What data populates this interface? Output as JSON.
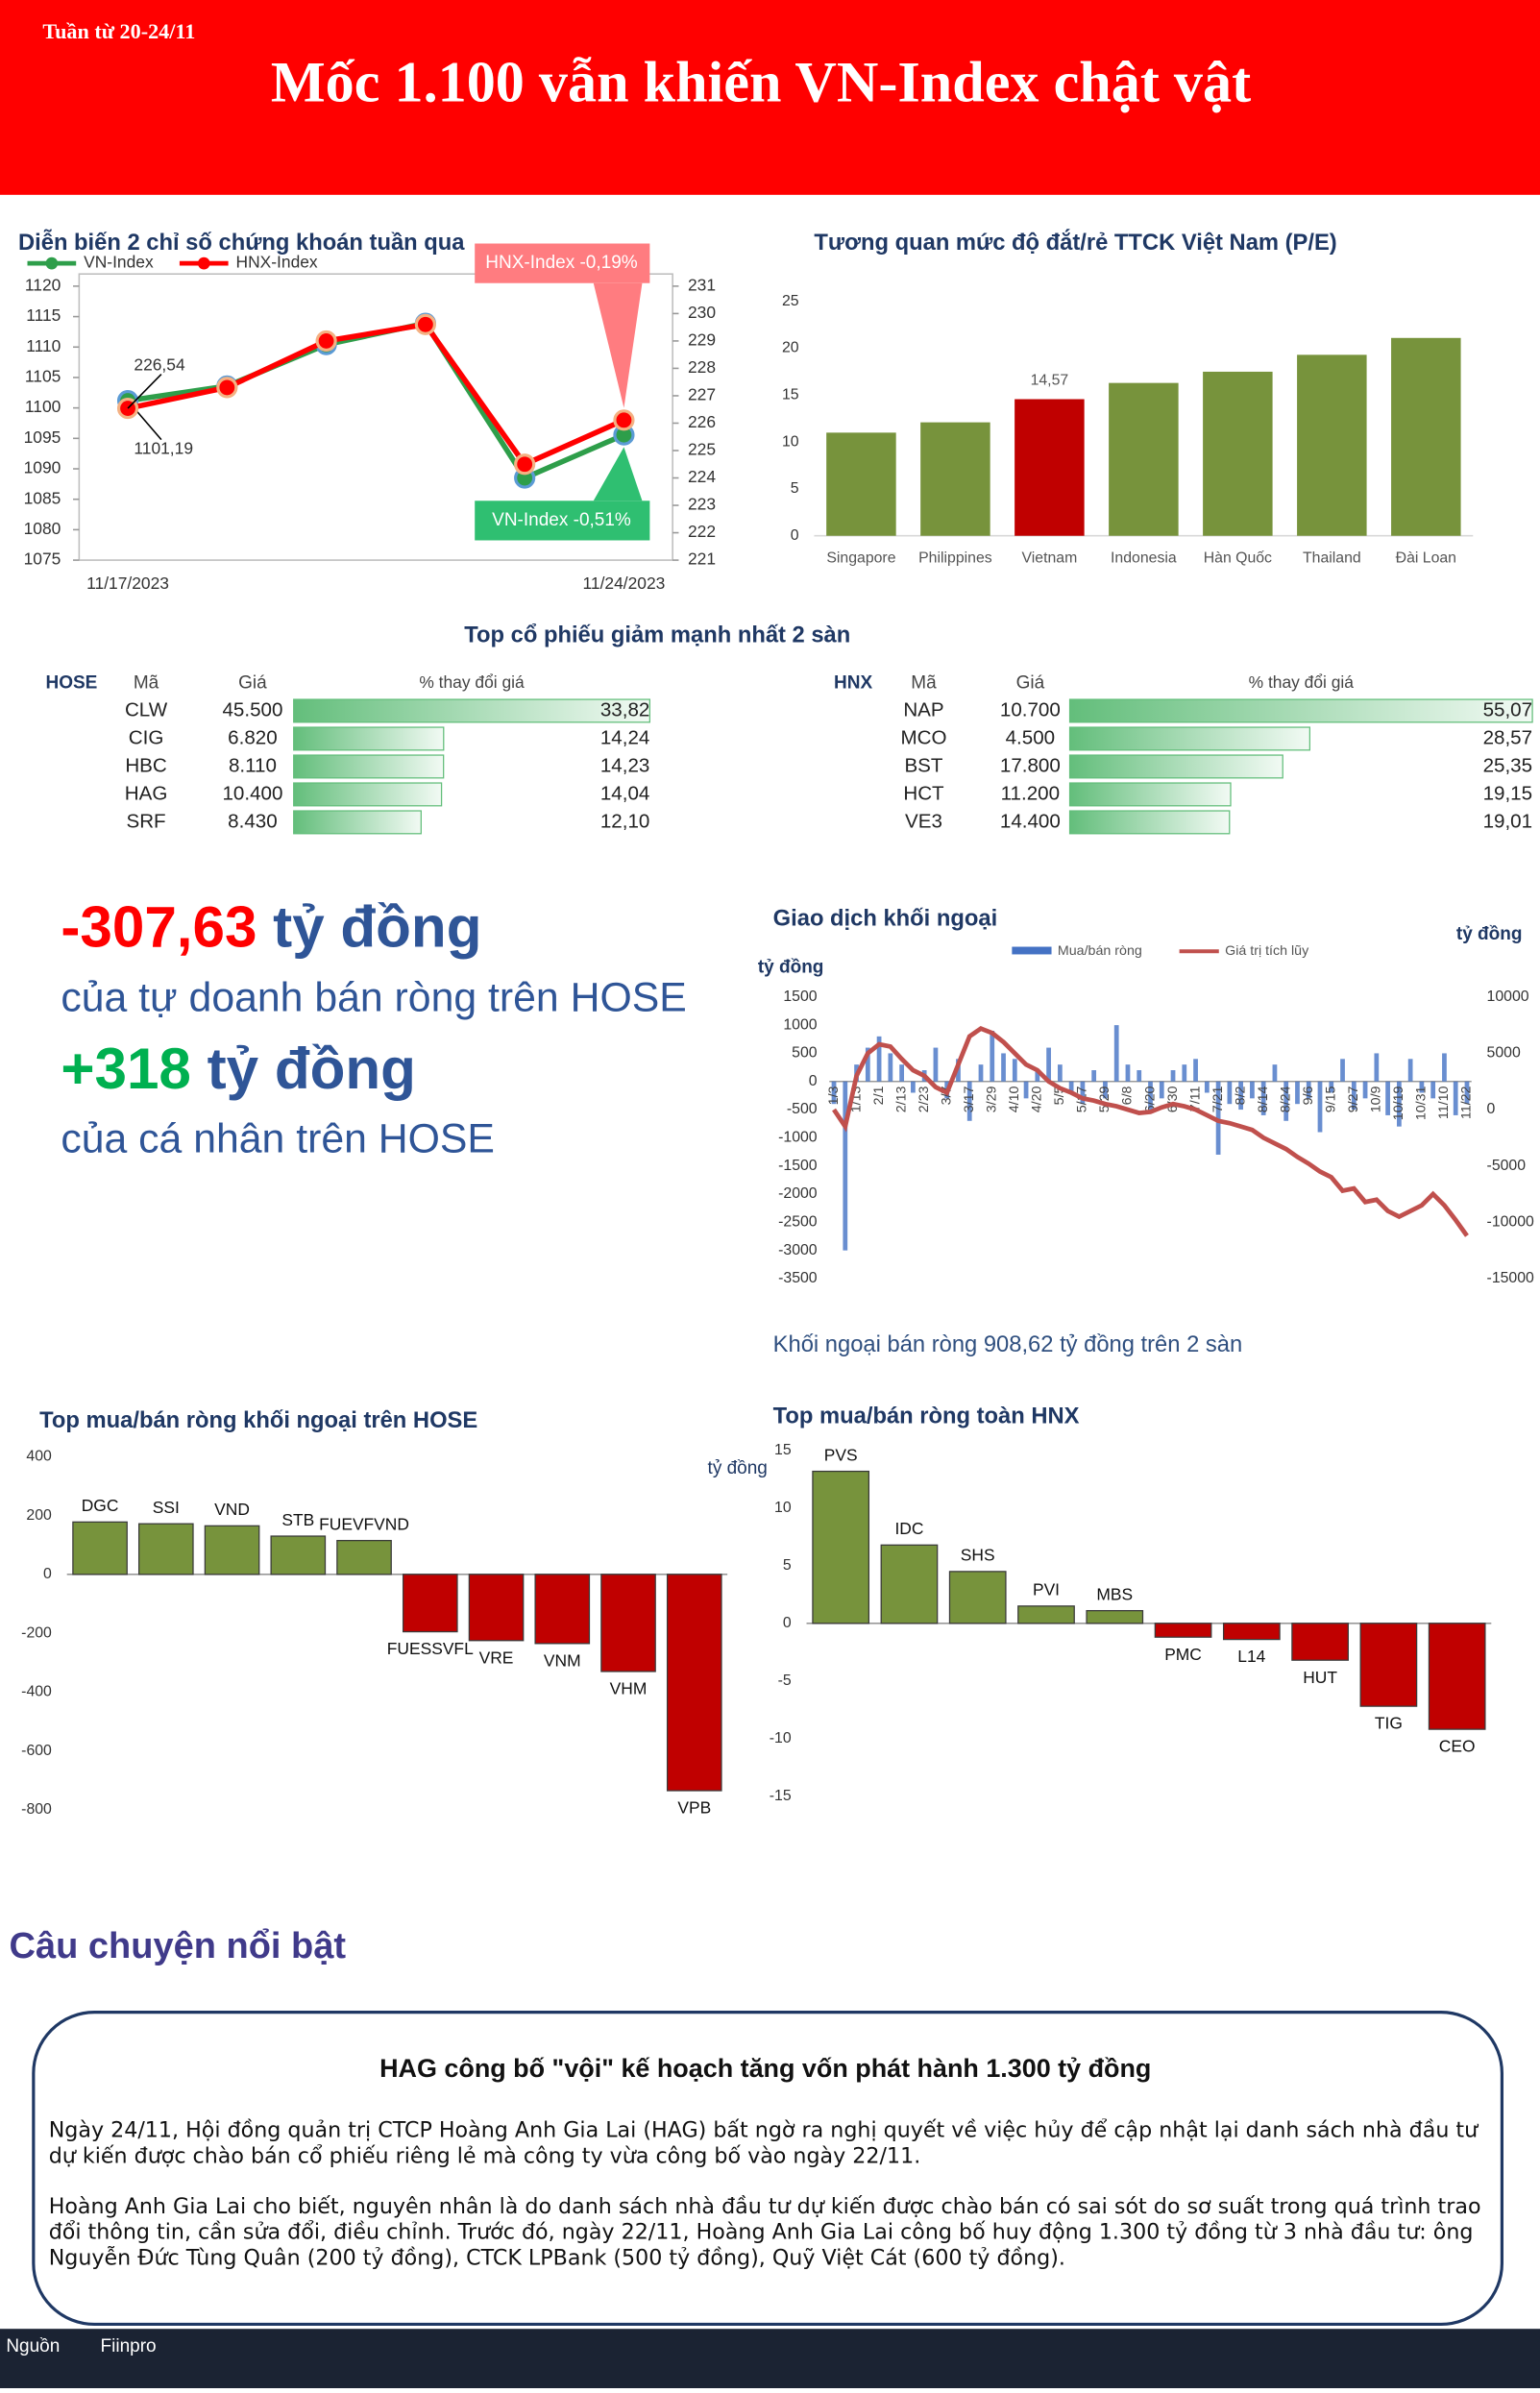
{
  "header": {
    "week": "Tuần từ 20-24/11",
    "title": "Mốc 1.100 vẫn khiến VN-Index chật vật"
  },
  "chart_data": [
    {
      "type": "line",
      "title": "Diễn biến 2 chỉ số chứng khoán tuần qua",
      "categories": [
        "11/17/2023",
        null,
        null,
        null,
        null,
        "11/24/2023"
      ],
      "series": [
        {
          "name": "VN-Index",
          "color": "#2e9e4a",
          "values": [
            1101.19,
            1103.6,
            1110.4,
            1113.9,
            1088.5,
            1095.57
          ],
          "value_labels": [
            "1101,19",
            null,
            null,
            null,
            null,
            null
          ],
          "annotation": "VN-Index -0,51%"
        },
        {
          "name": "HNX-Index",
          "color": "#ff0000",
          "axis": "y2",
          "values": [
            226.54,
            227.3,
            229,
            229.6,
            224.5,
            226.11
          ],
          "value_labels": [
            "226,54",
            null,
            null,
            null,
            null,
            null
          ],
          "annotation": "HNX-Index -0,19%"
        }
      ],
      "ylim": [
        1075,
        1120
      ],
      "yticks": [
        1075,
        1080,
        1085,
        1090,
        1095,
        1100,
        1105,
        1110,
        1115,
        1120
      ],
      "y2lim": [
        221,
        231
      ],
      "y2ticks": [
        221,
        222,
        223,
        224,
        225,
        226,
        227,
        228,
        229,
        230,
        231
      ]
    },
    {
      "type": "bar",
      "title": "Tương quan mức độ đắt/rẻ TTCK Việt Nam (P/E)",
      "categories": [
        "Singapore",
        "Philippines",
        "Vietnam",
        "Indonesia",
        "Hàn Quốc",
        "Thailand",
        "Đài Loan"
      ],
      "values": [
        11,
        12.1,
        14.57,
        16.3,
        17.5,
        19.3,
        21.1
      ],
      "value_labels": [
        null,
        null,
        "14,57",
        null,
        null,
        null,
        null
      ],
      "colors": [
        "#77933c",
        "#77933c",
        "#c00000",
        "#77933c",
        "#77933c",
        "#77933c",
        "#77933c"
      ],
      "ylim": [
        0,
        25
      ],
      "yticks": [
        0,
        5,
        10,
        15,
        20,
        25
      ]
    },
    {
      "type": "combo",
      "title": "Giao dịch khối ngoại",
      "categories": [
        "1/3",
        null,
        "1/13",
        null,
        "2/1",
        null,
        "2/13",
        null,
        "2/23",
        null,
        "3/7",
        null,
        "3/17",
        null,
        "3/29",
        null,
        "4/10",
        null,
        "4/20",
        null,
        "5/5",
        null,
        "5/17",
        null,
        "5/29",
        null,
        "6/8",
        null,
        "6/20",
        null,
        "6/30",
        null,
        "7/11",
        null,
        "7/21",
        null,
        "8/2",
        null,
        "8/14",
        null,
        "8/24",
        null,
        "9/6",
        null,
        "9/15",
        null,
        "9/27",
        null,
        "10/9",
        null,
        "10/19",
        null,
        "10/31",
        null,
        "11/10",
        null,
        "11/22"
      ],
      "series": [
        {
          "name": "Mua/bán ròng",
          "color": "#4472c4",
          "type": "bar",
          "values": [
            -400,
            -3000,
            300,
            600,
            800,
            500,
            300,
            -200,
            200,
            600,
            -300,
            400,
            -700,
            300,
            900,
            500,
            400,
            -300,
            200,
            600,
            300,
            -200,
            -400,
            200,
            -300,
            1000,
            300,
            200,
            -500,
            -300,
            200,
            300,
            400,
            -200,
            -1300,
            -400,
            -500,
            -300,
            -600,
            300,
            -700,
            -400,
            -300,
            -900,
            -200,
            400,
            -500,
            -300,
            500,
            -600,
            -800,
            400,
            -200,
            -300,
            500,
            -600,
            -400
          ]
        },
        {
          "name": "Giá trị tích lũy",
          "color": "#c0504d",
          "axis": "y2",
          "values": [
            0,
            -1500,
            3000,
            5000,
            5800,
            5600,
            4500,
            3500,
            3000,
            2000,
            1500,
            4000,
            6500,
            7200,
            6800,
            6000,
            5000,
            4000,
            3500,
            2500,
            1900,
            1500,
            1000,
            800,
            500,
            300,
            0,
            -300,
            -200,
            200,
            500,
            300,
            0,
            -500,
            -1000,
            -1200,
            -1500,
            -1800,
            -2500,
            -3000,
            -3500,
            -4200,
            -4800,
            -5500,
            -6000,
            -7200,
            -7000,
            -8200,
            -8000,
            -9000,
            -9500,
            -9000,
            -8500,
            -7500,
            -8500,
            -9800,
            -11200
          ]
        }
      ],
      "y_label": "tỷ đồng",
      "y2_label": "tỷ đồng",
      "ylim": [
        -3500,
        1500
      ],
      "yticks": [
        -3500,
        -3000,
        -2500,
        -2000,
        -1500,
        -1000,
        -500,
        0,
        500,
        1000,
        1500
      ],
      "y2lim": [
        -15000,
        10000
      ],
      "y2ticks": [
        -15000,
        -10000,
        -5000,
        0,
        5000,
        10000
      ],
      "note": "Khối ngoại bán ròng 908,62 tỷ đồng trên 2 sàn"
    },
    {
      "type": "bar",
      "title": "Top mua/bán ròng khối ngoại trên HOSE",
      "label_position": "bar-end",
      "categories": [
        "DGC",
        "SSI",
        "VND",
        "STB",
        "FUEVFVND",
        "FUESSVFL",
        "VRE",
        "VNM",
        "VHM",
        "VPB"
      ],
      "values": [
        178,
        172,
        165,
        130,
        115,
        -195,
        -225,
        -235,
        -330,
        -735
      ],
      "positive_color": "#77933c",
      "negative_color": "#c00000",
      "ylim": [
        -800,
        400
      ],
      "yticks": [
        -800,
        -600,
        -400,
        -200,
        0,
        200,
        400
      ]
    },
    {
      "type": "bar",
      "title": "Top mua/bán ròng toàn HNX",
      "label_position": "bar-end",
      "y_label": "tỷ đồng",
      "categories": [
        "PVS",
        "IDC",
        "SHS",
        "PVI",
        "MBS",
        "PMC",
        "L14",
        "HUT",
        "TIG",
        "CEO"
      ],
      "values": [
        13.2,
        6.8,
        4.5,
        1.5,
        1.1,
        -1.2,
        -1.4,
        -3.2,
        -7.2,
        -9.2
      ],
      "positive_color": "#77933c",
      "negative_color": "#c00000",
      "ylim": [
        -15,
        15
      ],
      "yticks": [
        -15,
        -10,
        -5,
        0,
        5,
        10,
        15
      ]
    }
  ],
  "top_losers": {
    "title": "Top cổ phiếu giảm mạnh nhất 2 sàn",
    "tables": [
      {
        "exchange": "HOSE",
        "headers": [
          "Mã",
          "Giá",
          "% thay đổi giá"
        ],
        "rows": [
          {
            "code": "CLW",
            "price": "45.500",
            "change": {
              "value": 33.82,
              "label": "33,82"
            }
          },
          {
            "code": "CIG",
            "price": "6.820",
            "change": {
              "value": 14.24,
              "label": "14,24"
            }
          },
          {
            "code": "HBC",
            "price": "8.110",
            "change": {
              "value": 14.23,
              "label": "14,23"
            }
          },
          {
            "code": "HAG",
            "price": "10.400",
            "change": {
              "value": 14.04,
              "label": "14,04"
            }
          },
          {
            "code": "SRF",
            "price": "8.430",
            "change": {
              "value": 12.1,
              "label": "12,10"
            }
          }
        ]
      },
      {
        "exchange": "HNX",
        "headers": [
          "Mã",
          "Giá",
          "% thay đổi giá"
        ],
        "rows": [
          {
            "code": "NAP",
            "price": "10.700",
            "change": {
              "value": 55.07,
              "label": "55,07"
            }
          },
          {
            "code": "MCO",
            "price": "4.500",
            "change": {
              "value": 28.57,
              "label": "28,57"
            }
          },
          {
            "code": "BST",
            "price": "17.800",
            "change": {
              "value": 25.35,
              "label": "25,35"
            }
          },
          {
            "code": "HCT",
            "price": "11.200",
            "change": {
              "value": 19.15,
              "label": "19,15"
            }
          },
          {
            "code": "VE3",
            "price": "14.400",
            "change": {
              "value": 19.01,
              "label": "19,01"
            }
          }
        ]
      }
    ]
  },
  "highlights": [
    {
      "figure": "-307,63",
      "unit": " tỷ đồng",
      "text": "của tự doanh bán ròng trên HOSE"
    },
    {
      "figure": "+318",
      "unit": " tỷ đồng",
      "text": "của cá nhân trên HOSE"
    }
  ],
  "story": {
    "section": "Câu chuyện nổi bật",
    "title": "HAG công bố \"vội\" kế hoạch tăng vốn phát hành 1.300 tỷ đồng",
    "paragraphs": [
      "Ngày 24/11, Hội đồng quản trị CTCP Hoàng Anh Gia Lai (HAG) bất ngờ ra nghị quyết về việc hủy để cập nhật lại danh sách nhà đầu tư dự kiến được chào bán cổ phiếu riêng lẻ mà công ty vừa công bố vào ngày 22/11.",
      "Hoàng Anh Gia Lai cho biết, nguyên nhân là do danh sách nhà đầu tư dự kiến được chào bán có sai sót do sơ suất trong quá trình trao đổi thông tin, cần sửa đổi, điều chỉnh. Trước đó, ngày 22/11, Hoàng Anh Gia Lai công bố huy động 1.300 tỷ đồng từ 3 nhà đầu tư: ông Nguyễn Đức Tùng Quân (200 tỷ đồng), CTCK LPBank (500 tỷ đồng), Quỹ Việt Cát (600 tỷ đồng)."
    ]
  },
  "footer": {
    "label": "Nguồn",
    "source": "Fiinpro"
  }
}
